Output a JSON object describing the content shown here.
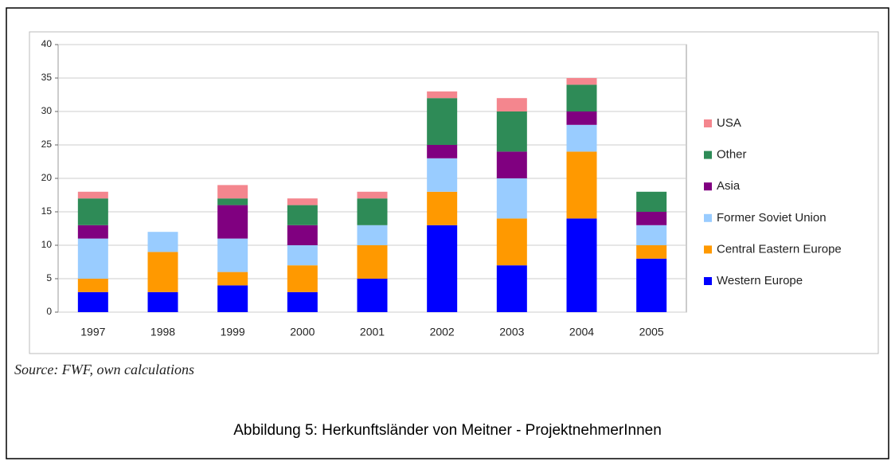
{
  "chart_data": {
    "type": "bar",
    "stacked": true,
    "categories": [
      "1997",
      "1998",
      "1999",
      "2000",
      "2001",
      "2002",
      "2003",
      "2004",
      "2005"
    ],
    "series": [
      {
        "name": "Western Europe",
        "color": "#0000ff",
        "values": [
          3,
          3,
          4,
          3,
          5,
          13,
          7,
          14,
          8
        ]
      },
      {
        "name": "Central Eastern Europe",
        "color": "#ff9900",
        "values": [
          2,
          6,
          2,
          4,
          5,
          5,
          7,
          10,
          2
        ]
      },
      {
        "name": "Former Soviet Union",
        "color": "#99ccff",
        "values": [
          6,
          3,
          5,
          3,
          3,
          5,
          6,
          4,
          3
        ]
      },
      {
        "name": "Asia",
        "color": "#800080",
        "values": [
          2,
          0,
          5,
          3,
          0,
          2,
          4,
          2,
          2
        ]
      },
      {
        "name": "Other",
        "color": "#2e8b57",
        "values": [
          4,
          0,
          1,
          3,
          4,
          7,
          6,
          4,
          3
        ]
      },
      {
        "name": "USA",
        "color": "#f4868e",
        "values": [
          1,
          0,
          2,
          1,
          1,
          1,
          2,
          1,
          0
        ]
      }
    ],
    "ylim": [
      0,
      40
    ],
    "yticks": [
      0,
      5,
      10,
      15,
      20,
      25,
      30,
      35,
      40
    ],
    "grid": true,
    "legend": "right"
  },
  "source": "Source: FWF, own calculations",
  "caption": "Abbildung 5: Herkunftsländer von Meitner - ProjektnehmerInnen"
}
